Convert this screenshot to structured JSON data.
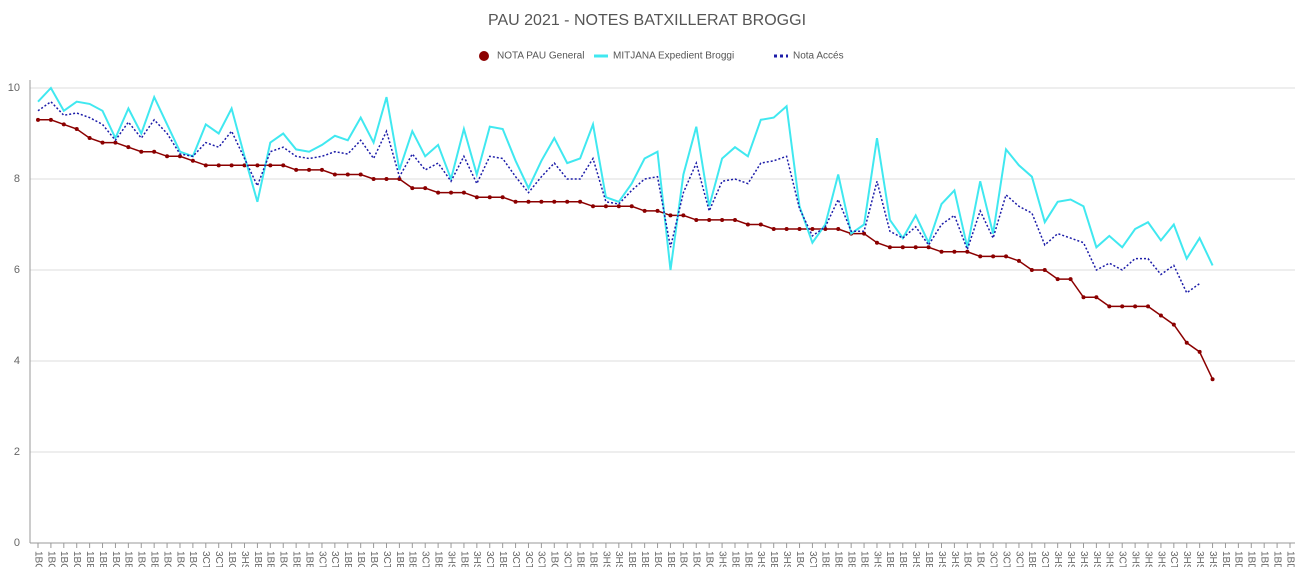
{
  "chart_data": {
    "type": "line",
    "title": "PAU 2021 - NOTES BATXILLERAT BROGGI",
    "categories": [
      "1BC",
      "1BC",
      "1BC",
      "1BC",
      "1BB",
      "1BB",
      "1BC",
      "1BB",
      "1BC",
      "1BB",
      "1BC",
      "1BC",
      "1BC",
      "3CT",
      "3CT",
      "1BC",
      "3HS",
      "1BB",
      "1BB",
      "1BC",
      "1BB",
      "1BB",
      "3CT",
      "3CT",
      "1BB",
      "1BC",
      "1BC",
      "3CT",
      "1BB",
      "1BB",
      "3CT",
      "1BB",
      "3HS",
      "1BB",
      "3HS",
      "3CT",
      "1BB",
      "3CT",
      "3CT",
      "3CT",
      "1BC",
      "3CT",
      "1BB",
      "1BB",
      "3HS",
      "3HS",
      "1BB",
      "1BB",
      "1BC",
      "1BB",
      "1BC",
      "1BC",
      "1BC",
      "3HS",
      "1BB",
      "1BB",
      "3HS",
      "1BB",
      "3HS",
      "1BC",
      "3CT",
      "1BB",
      "1BB",
      "1BB",
      "1BB",
      "3HS",
      "1BB",
      "1BB",
      "3HS",
      "1BB",
      "3HS",
      "3HS",
      "1BC",
      "1BC",
      "3CT",
      "3CT",
      "3CT",
      "1BB",
      "3CT",
      "3HS",
      "3HS",
      "3HS",
      "3HS",
      "3HS",
      "3CT",
      "3HS",
      "3HS",
      "3HS",
      "3CT",
      "3HS",
      "3HS",
      "3HS",
      "1BD",
      "1BD",
      "1BD",
      "1BD",
      "1BD",
      "1BD"
    ],
    "series": [
      {
        "name": "NOTA PAU General",
        "color": "#8b0000",
        "style": "markers",
        "values": [
          9.3,
          9.3,
          9.2,
          9.1,
          8.9,
          8.8,
          8.8,
          8.7,
          8.6,
          8.6,
          8.5,
          8.5,
          8.4,
          8.3,
          8.3,
          8.3,
          8.3,
          8.3,
          8.3,
          8.3,
          8.2,
          8.2,
          8.2,
          8.1,
          8.1,
          8.1,
          8.0,
          8.0,
          8.0,
          7.8,
          7.8,
          7.7,
          7.7,
          7.7,
          7.6,
          7.6,
          7.6,
          7.5,
          7.5,
          7.5,
          7.5,
          7.5,
          7.5,
          7.4,
          7.4,
          7.4,
          7.4,
          7.3,
          7.3,
          7.2,
          7.2,
          7.1,
          7.1,
          7.1,
          7.1,
          7.0,
          7.0,
          6.9,
          6.9,
          6.9,
          6.9,
          6.9,
          6.9,
          6.8,
          6.8,
          6.6,
          6.5,
          6.5,
          6.5,
          6.5,
          6.4,
          6.4,
          6.4,
          6.3,
          6.3,
          6.3,
          6.2,
          6.0,
          6.0,
          5.8,
          5.8,
          5.4,
          5.4,
          5.2,
          5.2,
          5.2,
          5.2,
          5.0,
          4.8,
          4.4,
          4.2,
          3.6,
          null,
          null,
          null,
          null,
          null,
          null
        ]
      },
      {
        "name": "MITJANA Expedient Broggi",
        "color": "#40e8f0",
        "style": "solid",
        "values": [
          9.7,
          10.0,
          9.5,
          9.7,
          9.65,
          9.5,
          8.9,
          9.55,
          9.0,
          9.8,
          9.2,
          8.6,
          8.5,
          9.2,
          9.0,
          9.55,
          8.5,
          7.5,
          8.8,
          9.0,
          8.65,
          8.6,
          8.75,
          8.95,
          8.85,
          9.35,
          8.8,
          9.8,
          8.2,
          9.05,
          8.5,
          8.75,
          8.0,
          9.1,
          8.1,
          9.15,
          9.1,
          8.4,
          7.8,
          8.4,
          8.9,
          8.35,
          8.45,
          9.2,
          7.6,
          7.5,
          7.9,
          8.45,
          8.6,
          6.0,
          8.1,
          9.15,
          7.4,
          8.45,
          8.7,
          8.5,
          9.3,
          9.35,
          9.6,
          7.4,
          6.6,
          7.0,
          8.1,
          6.8,
          7.0,
          8.9,
          7.1,
          6.7,
          7.2,
          6.6,
          7.45,
          7.75,
          6.5,
          7.95,
          6.8,
          8.65,
          8.3,
          8.05,
          7.05,
          7.5,
          7.55,
          7.4,
          6.5,
          6.75,
          6.5,
          6.9,
          7.05,
          6.65,
          7.0,
          6.25,
          6.7,
          6.1,
          null,
          null,
          null,
          null,
          null,
          null
        ]
      },
      {
        "name": "Nota Accés",
        "color": "#1c1ca8",
        "style": "dotted",
        "values": [
          9.5,
          9.7,
          9.4,
          9.45,
          9.35,
          9.2,
          8.85,
          9.25,
          8.9,
          9.3,
          9.0,
          8.55,
          8.5,
          8.8,
          8.7,
          9.05,
          8.45,
          7.85,
          8.6,
          8.7,
          8.5,
          8.45,
          8.5,
          8.6,
          8.55,
          8.85,
          8.45,
          9.05,
          8.05,
          8.55,
          8.2,
          8.35,
          7.95,
          8.5,
          7.9,
          8.5,
          8.45,
          8.05,
          7.7,
          8.05,
          8.35,
          8.0,
          8.0,
          8.45,
          7.5,
          7.45,
          7.75,
          8.0,
          8.05,
          6.5,
          7.7,
          8.35,
          7.3,
          7.95,
          8.0,
          7.9,
          8.35,
          8.4,
          8.5,
          7.35,
          6.75,
          6.95,
          7.55,
          6.85,
          6.85,
          7.95,
          6.85,
          6.7,
          6.95,
          6.55,
          7.0,
          7.2,
          6.45,
          7.3,
          6.7,
          7.65,
          7.4,
          7.25,
          6.55,
          6.8,
          6.7,
          6.6,
          6.0,
          6.15,
          6.0,
          6.25,
          6.25,
          5.9,
          6.1,
          5.5,
          5.7,
          null,
          null,
          null,
          null,
          null,
          null,
          null
        ]
      }
    ],
    "ylim": [
      0,
      10
    ],
    "yticks": [
      0,
      2,
      4,
      6,
      8,
      10
    ],
    "grid": true
  }
}
